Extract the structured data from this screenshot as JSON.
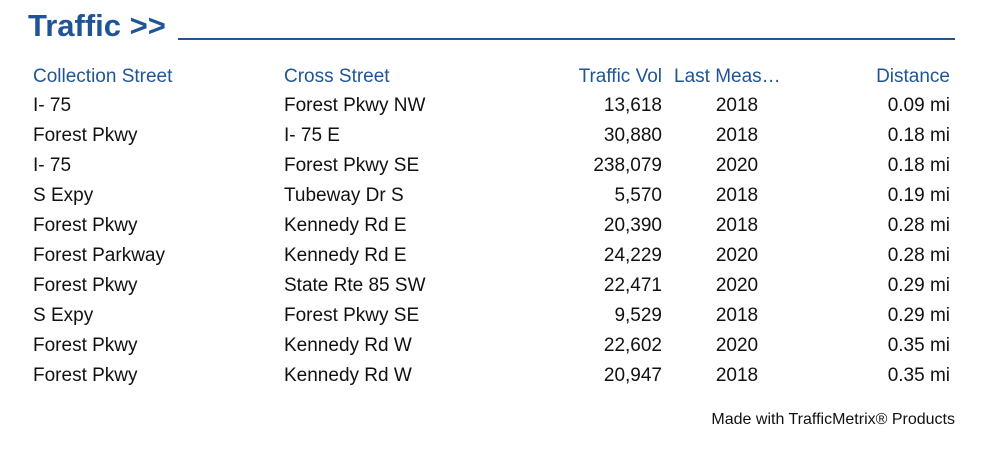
{
  "header": {
    "title": "Traffic >>"
  },
  "table": {
    "columns": [
      "Collection Street",
      "Cross Street",
      "Traffic Vol",
      "Last Meas…",
      "Distance"
    ],
    "rows": [
      [
        "I- 75",
        "Forest Pkwy NW",
        "13,618",
        "2018",
        "0.09 mi"
      ],
      [
        "Forest Pkwy",
        "I- 75 E",
        "30,880",
        "2018",
        "0.18 mi"
      ],
      [
        "I- 75",
        "Forest Pkwy SE",
        "238,079",
        "2020",
        "0.18 mi"
      ],
      [
        "S Expy",
        "Tubeway Dr S",
        "5,570",
        "2018",
        "0.19 mi"
      ],
      [
        "Forest Pkwy",
        "Kennedy Rd E",
        "20,390",
        "2018",
        "0.28 mi"
      ],
      [
        "Forest Parkway",
        "Kennedy Rd E",
        "24,229",
        "2020",
        "0.28 mi"
      ],
      [
        "Forest Pkwy",
        "State Rte 85 SW",
        "22,471",
        "2020",
        "0.29 mi"
      ],
      [
        "S Expy",
        "Forest Pkwy SE",
        "9,529",
        "2018",
        "0.29 mi"
      ],
      [
        "Forest Pkwy",
        "Kennedy Rd W",
        "22,602",
        "2020",
        "0.35 mi"
      ],
      [
        "Forest Pkwy",
        "Kennedy Rd W",
        "20,947",
        "2018",
        "0.35 mi"
      ]
    ]
  },
  "footer": {
    "text": "Made with TrafficMetrix® Products"
  }
}
